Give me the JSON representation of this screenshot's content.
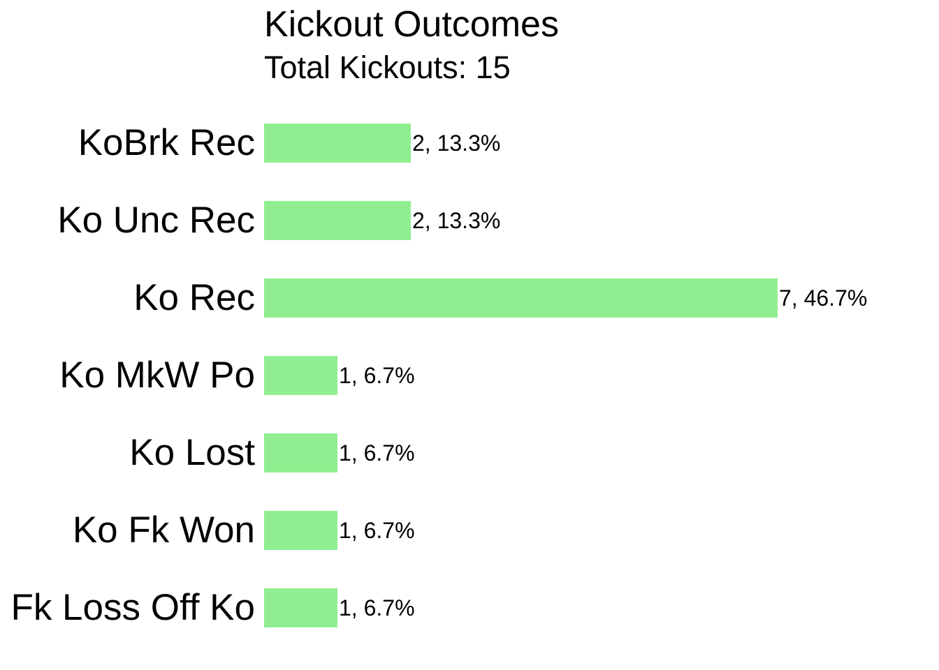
{
  "chart_data": {
    "type": "bar",
    "orientation": "horizontal",
    "title": "Kickout Outcomes",
    "subtitle": "Total Kickouts: 15",
    "total_kickouts": 15,
    "categories": [
      "KoBrk Rec",
      "Ko Unc Rec",
      "Ko Rec",
      "Ko MkW Po",
      "Ko Lost",
      "Ko Fk Won",
      "Fk Loss Off Ko"
    ],
    "values": [
      2,
      2,
      7,
      1,
      1,
      1,
      1
    ],
    "percentages": [
      13.3,
      13.3,
      46.7,
      6.7,
      6.7,
      6.7,
      6.7
    ],
    "value_labels": [
      "2, 13.3%",
      "2, 13.3%",
      "7, 46.7%",
      "1, 6.7%",
      "1, 6.7%",
      "1, 6.7%",
      "1, 6.7%"
    ],
    "bar_color": "#90EE90",
    "text_color": "#000000",
    "background_color": "#FFFFFF",
    "grid": false,
    "legend": false,
    "axes_visible": false
  }
}
